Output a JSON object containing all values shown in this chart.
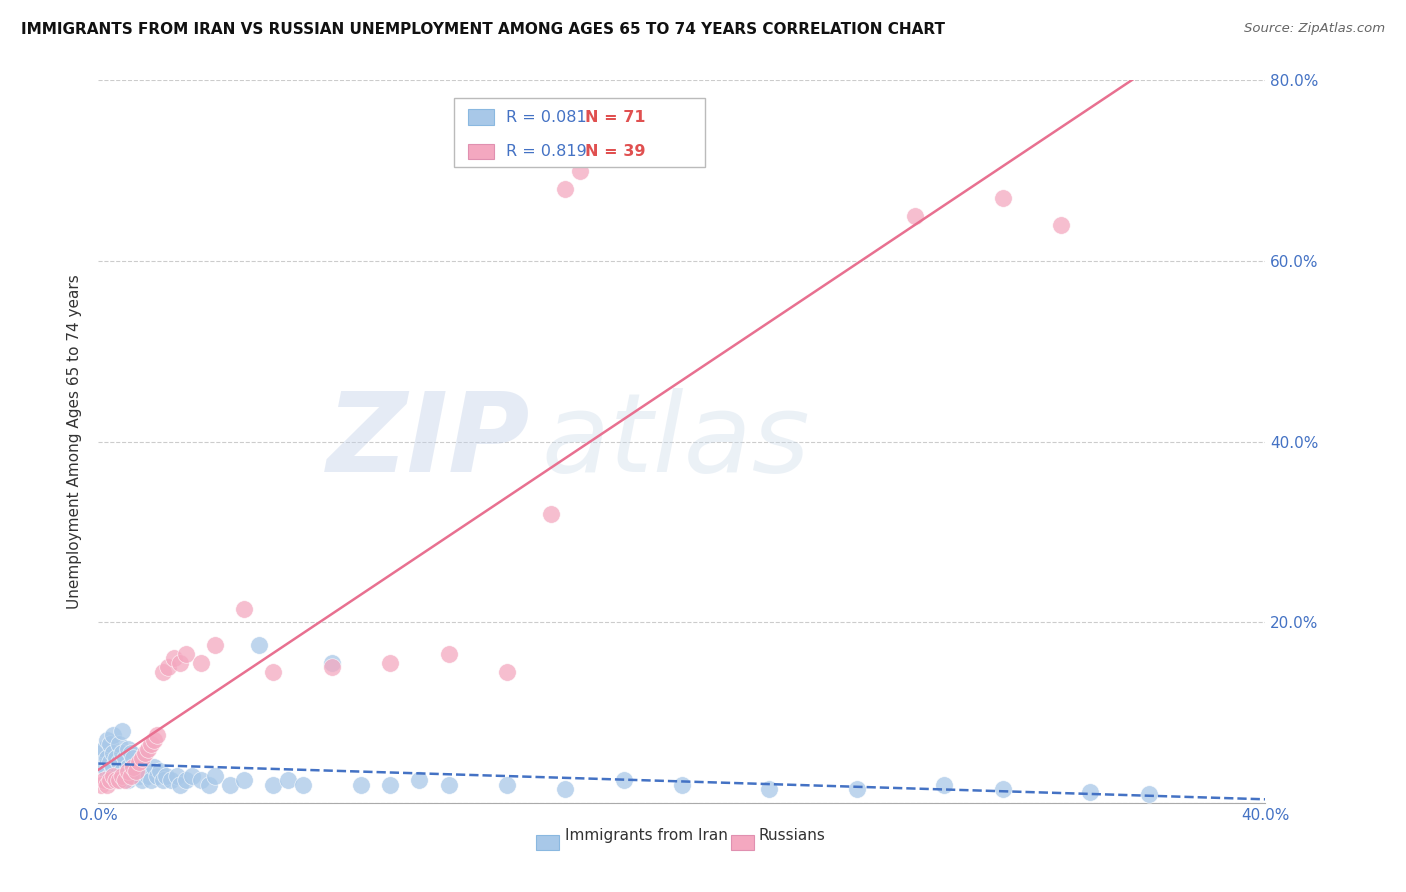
{
  "title": "IMMIGRANTS FROM IRAN VS RUSSIAN UNEMPLOYMENT AMONG AGES 65 TO 74 YEARS CORRELATION CHART",
  "source": "Source: ZipAtlas.com",
  "ylabel": "Unemployment Among Ages 65 to 74 years",
  "xlim": [
    0.0,
    0.4
  ],
  "ylim": [
    0.0,
    0.8
  ],
  "watermark_text": "ZIPatlas",
  "legend_r1": "R = 0.081",
  "legend_n1": "N = 71",
  "legend_r2": "R = 0.819",
  "legend_n2": "N = 39",
  "blue_scatter_color": "#a8c8e8",
  "pink_scatter_color": "#f4a8c0",
  "blue_line_color": "#4472c4",
  "pink_line_color": "#e87090",
  "r_text_color": "#4472c4",
  "n_text_color": "#e05050",
  "axis_label_color": "#4472c4",
  "title_color": "#111111",
  "iran_x": [
    0.001,
    0.002,
    0.002,
    0.003,
    0.003,
    0.003,
    0.004,
    0.004,
    0.004,
    0.005,
    0.005,
    0.005,
    0.005,
    0.006,
    0.006,
    0.007,
    0.007,
    0.007,
    0.008,
    0.008,
    0.008,
    0.009,
    0.009,
    0.01,
    0.01,
    0.01,
    0.011,
    0.011,
    0.012,
    0.012,
    0.013,
    0.014,
    0.015,
    0.015,
    0.016,
    0.017,
    0.018,
    0.019,
    0.02,
    0.021,
    0.022,
    0.023,
    0.025,
    0.027,
    0.028,
    0.03,
    0.032,
    0.035,
    0.038,
    0.04,
    0.045,
    0.05,
    0.055,
    0.06,
    0.065,
    0.07,
    0.08,
    0.09,
    0.1,
    0.11,
    0.12,
    0.14,
    0.16,
    0.18,
    0.2,
    0.23,
    0.26,
    0.29,
    0.31,
    0.34,
    0.36
  ],
  "iran_y": [
    0.055,
    0.04,
    0.06,
    0.035,
    0.05,
    0.07,
    0.03,
    0.045,
    0.065,
    0.025,
    0.04,
    0.055,
    0.075,
    0.03,
    0.05,
    0.025,
    0.045,
    0.065,
    0.035,
    0.055,
    0.08,
    0.03,
    0.05,
    0.025,
    0.04,
    0.06,
    0.035,
    0.055,
    0.03,
    0.05,
    0.035,
    0.03,
    0.025,
    0.05,
    0.035,
    0.03,
    0.025,
    0.04,
    0.03,
    0.035,
    0.025,
    0.03,
    0.025,
    0.03,
    0.02,
    0.025,
    0.03,
    0.025,
    0.02,
    0.03,
    0.02,
    0.025,
    0.175,
    0.02,
    0.025,
    0.02,
    0.155,
    0.02,
    0.02,
    0.025,
    0.02,
    0.02,
    0.015,
    0.025,
    0.02,
    0.015,
    0.015,
    0.02,
    0.015,
    0.012,
    0.01
  ],
  "russia_x": [
    0.001,
    0.002,
    0.003,
    0.004,
    0.005,
    0.006,
    0.007,
    0.008,
    0.009,
    0.01,
    0.011,
    0.012,
    0.013,
    0.014,
    0.015,
    0.016,
    0.017,
    0.018,
    0.019,
    0.02,
    0.022,
    0.024,
    0.026,
    0.028,
    0.03,
    0.035,
    0.04,
    0.05,
    0.06,
    0.08,
    0.1,
    0.12,
    0.14,
    0.155,
    0.16,
    0.165,
    0.28,
    0.31,
    0.33
  ],
  "russia_y": [
    0.02,
    0.025,
    0.02,
    0.025,
    0.03,
    0.025,
    0.025,
    0.03,
    0.025,
    0.035,
    0.03,
    0.04,
    0.035,
    0.045,
    0.05,
    0.055,
    0.06,
    0.065,
    0.07,
    0.075,
    0.145,
    0.15,
    0.16,
    0.155,
    0.165,
    0.155,
    0.175,
    0.215,
    0.145,
    0.15,
    0.155,
    0.165,
    0.145,
    0.32,
    0.68,
    0.7,
    0.65,
    0.67,
    0.64
  ]
}
